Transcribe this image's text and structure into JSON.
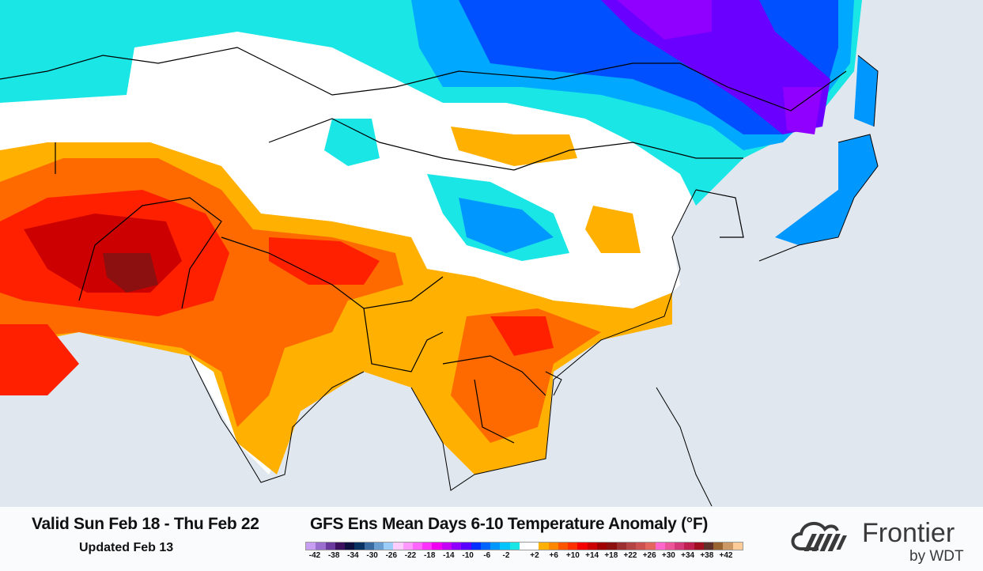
{
  "header": {
    "valid_period": "Valid Sun Feb 18 - Thu Feb 22",
    "updated": "Updated Feb 13",
    "title": "GFS Ens Mean Days 6-10 Temperature Anomaly (°F)"
  },
  "legend": {
    "unit": "°F",
    "labels": [
      "-42",
      "-38",
      "-34",
      "-30",
      "-26",
      "-22",
      "-18",
      "-14",
      "-10",
      "-6",
      "-2",
      "+2",
      "+6",
      "+10",
      "+14",
      "+18",
      "+22",
      "+26",
      "+30",
      "+34",
      "+38",
      "+42"
    ],
    "colors": [
      "#c79ef2",
      "#9b6fd0",
      "#6a3a9f",
      "#3e1060",
      "#101040",
      "#0a3262",
      "#3a6aa2",
      "#6a9fd2",
      "#9ccdf8",
      "#ffccff",
      "#ff99ff",
      "#ff66ff",
      "#ff33ff",
      "#f000f0",
      "#c400f5",
      "#9000ff",
      "#5a00ff",
      "#0030ff",
      "#0064ff",
      "#0098ff",
      "#00c4ff",
      "#1ae6e6",
      "#ffffff",
      "#ffffff",
      "#ffb000",
      "#ff8800",
      "#ff5500",
      "#ff3000",
      "#f50000",
      "#cc0000",
      "#a00000",
      "#8c1010",
      "#9c3030",
      "#b44444",
      "#cc5252",
      "#e2665e",
      "#ff66cc",
      "#ec5599",
      "#d43a7a",
      "#c02050",
      "#a01020",
      "#60302a",
      "#9a6432",
      "#cc9966",
      "#ffcc99"
    ]
  },
  "map": {
    "ocean_color": "#e0e7ee",
    "border_color": "#000000"
  },
  "logo": {
    "name": "Frontier",
    "sub": "by WDT"
  }
}
